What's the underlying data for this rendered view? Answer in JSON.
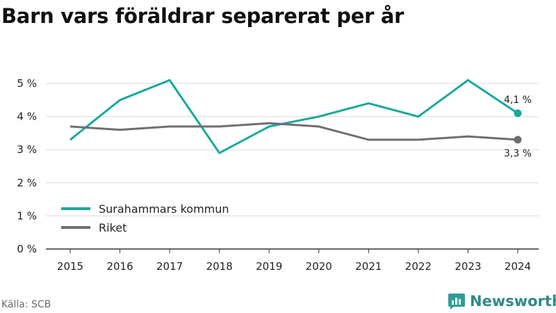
{
  "title": "Barn vars föräldrar separerat per år",
  "source": "Källa: SCB",
  "brand": {
    "name": "Newsworthy",
    "icon": "bar-chart-icon",
    "color": "#2f9e97"
  },
  "chart_data": {
    "type": "line",
    "title": "Barn vars föräldrar separerat per år",
    "x": [
      "2015",
      "2016",
      "2017",
      "2018",
      "2019",
      "2020",
      "2021",
      "2022",
      "2023",
      "2024"
    ],
    "yticks": [
      "0 %",
      "1 %",
      "2 %",
      "3 %",
      "4 %",
      "5 %"
    ],
    "ylim": [
      0,
      5.5
    ],
    "grid": "horizontal",
    "legend_position": "bottom-left",
    "series": [
      {
        "name": "Surahammars kommun",
        "color": "#17a99c",
        "values": [
          3.3,
          4.5,
          5.1,
          2.9,
          3.7,
          4.0,
          4.4,
          4.0,
          5.1,
          4.1
        ],
        "end_label": "4,1 %"
      },
      {
        "name": "Riket",
        "color": "#6e6e73",
        "values": [
          3.7,
          3.6,
          3.7,
          3.7,
          3.8,
          3.7,
          3.3,
          3.3,
          3.4,
          3.3
        ],
        "end_label": "3,3 %"
      }
    ]
  }
}
